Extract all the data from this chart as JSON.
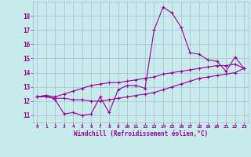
{
  "xlabel": "Windchill (Refroidissement éolien,°C)",
  "bg_color": "#c8ecec",
  "grid_color": "#b0b8d8",
  "line_color": "#990099",
  "xlim": [
    -0.5,
    23.5
  ],
  "ylim": [
    10.5,
    19.0
  ],
  "xticks": [
    0,
    1,
    2,
    3,
    4,
    5,
    6,
    7,
    8,
    9,
    10,
    11,
    12,
    13,
    14,
    15,
    16,
    17,
    18,
    19,
    20,
    21,
    22,
    23
  ],
  "yticks": [
    11,
    12,
    13,
    14,
    15,
    16,
    17,
    18
  ],
  "series1_x": [
    0,
    1,
    2,
    3,
    4,
    5,
    6,
    7,
    8,
    9,
    10,
    11,
    12,
    13,
    14,
    15,
    16,
    17,
    18,
    19,
    20,
    21,
    22,
    23
  ],
  "series1_y": [
    12.3,
    12.4,
    12.1,
    11.1,
    11.2,
    11.0,
    11.1,
    12.3,
    11.2,
    12.8,
    13.1,
    13.1,
    12.9,
    17.0,
    18.6,
    18.2,
    17.2,
    15.4,
    15.3,
    14.9,
    14.8,
    14.1,
    15.1,
    14.3
  ],
  "series2_x": [
    0,
    1,
    2,
    3,
    4,
    5,
    6,
    7,
    8,
    9,
    10,
    11,
    12,
    13,
    14,
    15,
    16,
    17,
    18,
    19,
    20,
    21,
    22,
    23
  ],
  "series2_y": [
    12.3,
    12.4,
    12.3,
    12.5,
    12.7,
    12.9,
    13.1,
    13.2,
    13.3,
    13.3,
    13.4,
    13.5,
    13.6,
    13.7,
    13.9,
    14.0,
    14.1,
    14.2,
    14.3,
    14.4,
    14.5,
    14.5,
    14.6,
    14.3
  ],
  "series3_x": [
    0,
    1,
    2,
    3,
    4,
    5,
    6,
    7,
    8,
    9,
    10,
    11,
    12,
    13,
    14,
    15,
    16,
    17,
    18,
    19,
    20,
    21,
    22,
    23
  ],
  "series3_y": [
    12.3,
    12.3,
    12.2,
    12.2,
    12.1,
    12.1,
    12.0,
    12.0,
    12.1,
    12.2,
    12.3,
    12.4,
    12.5,
    12.6,
    12.8,
    13.0,
    13.2,
    13.4,
    13.6,
    13.7,
    13.8,
    13.9,
    14.0,
    14.3
  ]
}
